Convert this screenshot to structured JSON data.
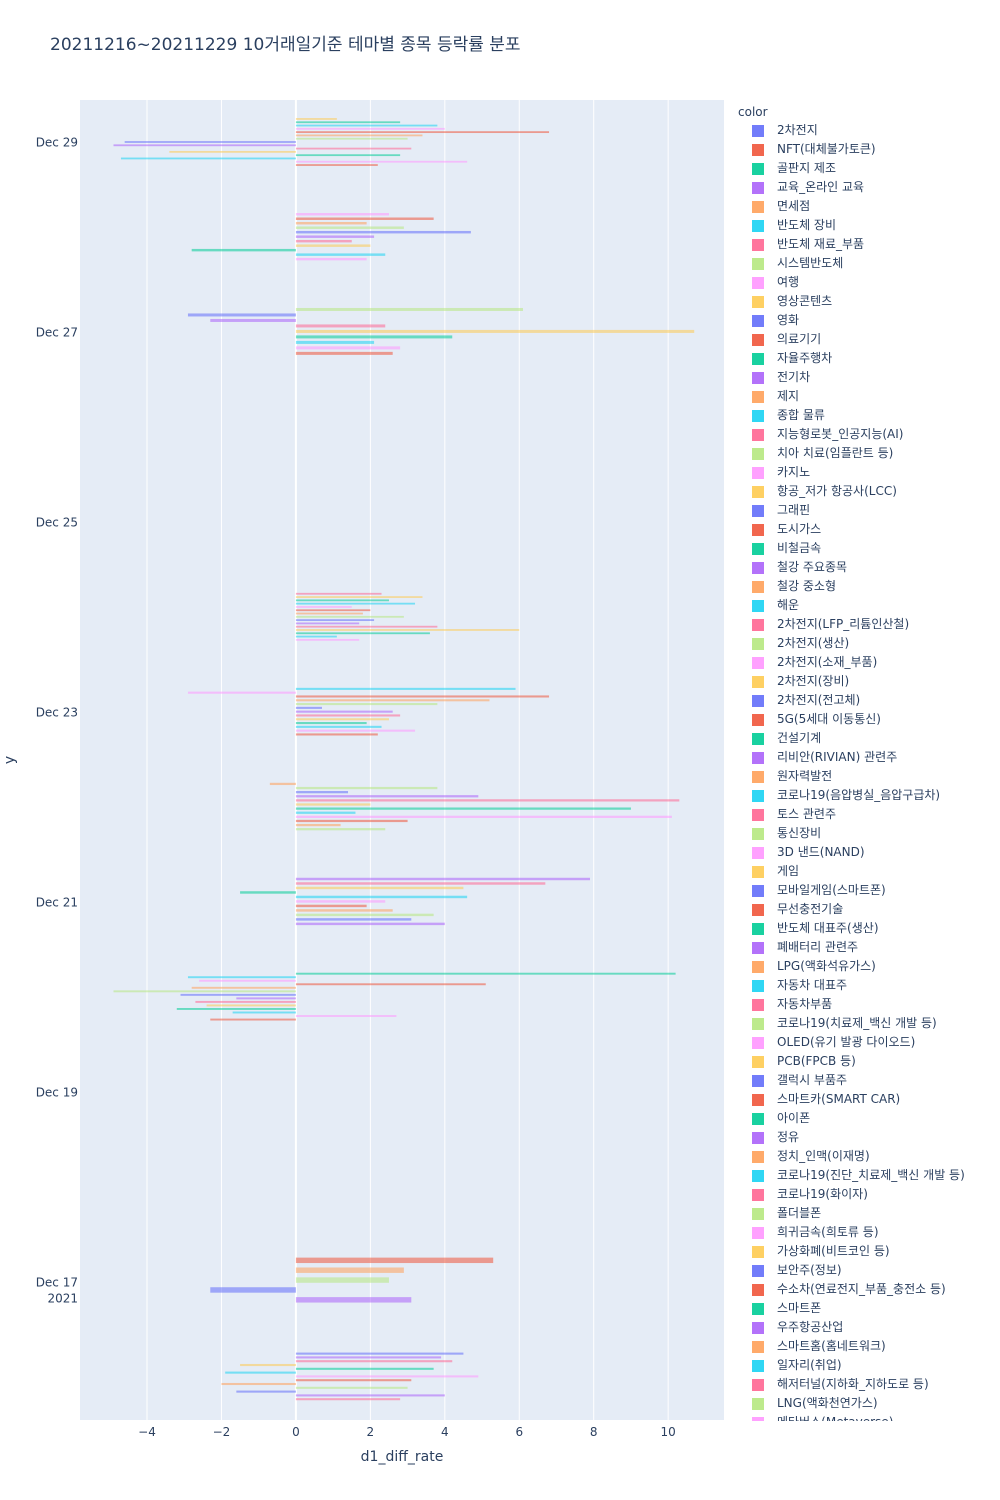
{
  "chart_data": {
    "type": "bar",
    "orientation": "horizontal",
    "title": "20211216~20211229 10거래일기준 테마별 종목 등락률 분포",
    "xlabel": "d1_diff_rate",
    "ylabel": "y",
    "xlim": [
      -5.8,
      11.5
    ],
    "x_ticks": [
      -4,
      -2,
      0,
      2,
      4,
      6,
      8,
      10
    ],
    "x_tick_labels": [
      "−4",
      "−2",
      "0",
      "2",
      "4",
      "6",
      "8",
      "10"
    ],
    "y_ticks": [
      {
        "day": 29,
        "line1": "Dec 29",
        "line2": ""
      },
      {
        "day": 27,
        "line1": "Dec 27",
        "line2": ""
      },
      {
        "day": 25,
        "line1": "Dec 25",
        "line2": ""
      },
      {
        "day": 23,
        "line1": "Dec 23",
        "line2": ""
      },
      {
        "day": 21,
        "line1": "Dec 21",
        "line2": ""
      },
      {
        "day": 19,
        "line1": "Dec 19",
        "line2": ""
      },
      {
        "day": 17,
        "line1": "Dec 17",
        "line2": "2021"
      }
    ],
    "y_range_days": [
      15.55,
      29.45
    ],
    "legend_title": "color",
    "legend": [
      "2차전지",
      "NFT(대체불가토큰)",
      "골판지 제조",
      "교육_온라인 교육",
      "면세점",
      "반도체 장비",
      "반도체 재료_부품",
      "시스템반도체",
      "여행",
      "영상콘텐츠",
      "영화",
      "의료기기",
      "자율주행차",
      "전기차",
      "제지",
      "종합 물류",
      "지능형로봇_인공지능(AI)",
      "치아 치료(임플란트 등)",
      "카지노",
      "항공_저가 항공사(LCC)",
      "그래핀",
      "도시가스",
      "비철금속",
      "철강 주요종목",
      "철강 중소형",
      "해운",
      "2차전지(LFP_리튬인산철)",
      "2차전지(생산)",
      "2차전지(소재_부품)",
      "2차전지(장비)",
      "2차전지(전고체)",
      "5G(5세대 이동통신)",
      "건설기계",
      "리비안(RIVIAN) 관련주",
      "원자력발전",
      "코로나19(음압병실_음압구급차)",
      "토스 관련주",
      "통신장비",
      "3D 낸드(NAND)",
      "게임",
      "모바일게임(스마트폰)",
      "무선충전기술",
      "반도체 대표주(생산)",
      "폐배터리 관련주",
      "LPG(액화석유가스)",
      "자동차 대표주",
      "자동차부품",
      "코로나19(치료제_백신 개발 등)",
      "OLED(유기 발광 다이오드)",
      "PCB(FPCB 등)",
      "갤럭시 부품주",
      "스마트카(SMART CAR)",
      "아이폰",
      "정유",
      "정치_인맥(이재명)",
      "코로나19(진단_치료제_백신 개발 등)",
      "코로나19(화이자)",
      "폴더블폰",
      "희귀금속(희토류 등)",
      "가상화폐(비트코인 등)",
      "보안주(정보)",
      "수소차(연료전지_부품_충전소 등)",
      "스마트폰",
      "우주항공산업",
      "스마트홈(홈네트워크)",
      "일자리(취업)",
      "해저터널(지하화_지하도로 등)",
      "LNG(액화천연가스)",
      "메타버스(Metaverse)"
    ],
    "colors": [
      "#636efa",
      "#EF553B",
      "#00cc96",
      "#ab63fa",
      "#FFA15A",
      "#19d3f3",
      "#FF6692",
      "#B6E880",
      "#FF97FF",
      "#FECB52"
    ],
    "series": [
      {
        "date": "2021-12-16",
        "values": [
          4.5,
          3.9,
          4.2,
          -1.5,
          3.7,
          -1.9,
          4.9,
          3.1,
          -2.0,
          3.0,
          -1.6,
          4.0,
          2.8
        ]
      },
      {
        "date": "2021-12-17",
        "values": [
          5.3,
          2.9,
          2.5,
          -2.3,
          3.1
        ]
      },
      {
        "date": "2021-12-20",
        "values": [
          10.2,
          -2.9,
          -2.6,
          5.1,
          -2.8,
          -4.9,
          -3.1,
          -1.6,
          -2.7,
          -2.4,
          -3.2,
          -1.7,
          2.7,
          -2.3
        ]
      },
      {
        "date": "2021-12-21",
        "values": [
          7.9,
          6.7,
          4.5,
          -1.5,
          4.6,
          2.4,
          1.9,
          2.6,
          3.7,
          3.1,
          4.0
        ]
      },
      {
        "date": "2021-12-22",
        "values": [
          -0.7,
          3.8,
          1.4,
          4.9,
          10.3,
          2.0,
          9.0,
          1.6,
          10.1,
          3.0,
          1.2,
          2.4
        ]
      },
      {
        "date": "2021-12-23",
        "values": [
          5.9,
          -2.9,
          6.8,
          5.2,
          3.8,
          0.7,
          2.6,
          2.8,
          2.5,
          1.9,
          2.3,
          3.2,
          2.2
        ]
      },
      {
        "date": "2021-12-24",
        "values": [
          2.3,
          3.4,
          2.5,
          3.2,
          1.5,
          2.0,
          1.8,
          2.9,
          2.1,
          1.7,
          3.8,
          6.0,
          3.6,
          1.1,
          1.7
        ]
      },
      {
        "date": "2021-12-27",
        "values": [
          6.1,
          -2.9,
          -2.3,
          2.4,
          10.7,
          4.2,
          2.1,
          2.8,
          2.6
        ]
      },
      {
        "date": "2021-12-28",
        "values": [
          2.5,
          3.7,
          1.9,
          2.9,
          4.7,
          2.1,
          1.5,
          2.0,
          -2.8,
          2.4,
          1.9
        ]
      },
      {
        "date": "2021-12-29",
        "values": [
          1.1,
          2.8,
          3.8,
          4.0,
          6.8,
          3.4,
          3.0,
          -4.6,
          -4.9,
          3.1,
          -3.4,
          2.8,
          -4.7,
          4.6,
          2.2
        ]
      }
    ]
  }
}
